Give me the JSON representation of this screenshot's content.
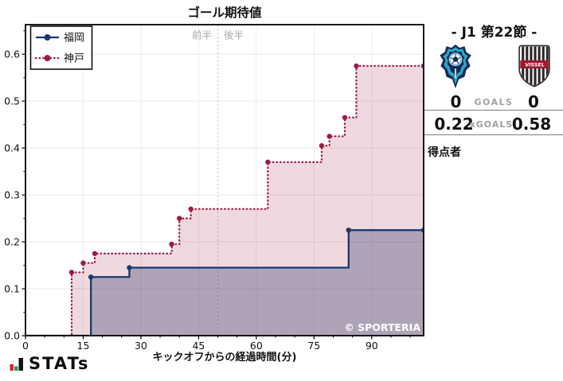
{
  "watermark": "© SPORTERIA",
  "branding": {
    "logo_text": "STATs"
  },
  "match_panel": {
    "title": "- J1 第22節 -",
    "goals_label": "GOALS",
    "xgoals_label": "xGOALS",
    "home": {
      "team": "福岡",
      "goals": "0",
      "xgoals": "0.22",
      "crest": "avispa-fukuoka-crest"
    },
    "away": {
      "team": "神戸",
      "goals": "0",
      "xgoals": "0.58",
      "crest": "vissel-kobe-crest"
    },
    "scorers_label": "得点者"
  },
  "chart_data": {
    "type": "line",
    "subtype": "step-after-cumulative-xg",
    "title": "ゴール期待値",
    "xlabel": "キックオフからの経過時間(分)",
    "period_labels": {
      "first_half": "前半",
      "second_half": "後半"
    },
    "halftime_x": 50,
    "x_ticks": [
      0,
      15,
      30,
      45,
      60,
      75,
      90
    ],
    "y_ticks": [
      0.0,
      0.1,
      0.2,
      0.3,
      0.4,
      0.5,
      0.6
    ],
    "xlim": [
      0,
      103.5
    ],
    "ylim": [
      0,
      0.663
    ],
    "grid": true,
    "legend_position": "upper-left",
    "series": [
      {
        "id": "fukuoka",
        "name": "福岡",
        "color": "#173a6d",
        "fill_color": "rgba(23,58,109,0.33)",
        "line_style": "solid",
        "final_xg": 0.22,
        "points": [
          [
            0,
            0
          ],
          [
            17,
            0.125
          ],
          [
            27,
            0.145
          ],
          [
            84,
            0.225
          ],
          [
            103.5,
            0.225
          ]
        ]
      },
      {
        "id": "kobe",
        "name": "神戸",
        "color": "#9e1b42",
        "fill_color": "rgba(158,27,66,0.17)",
        "line_style": "dotted",
        "final_xg": 0.58,
        "points": [
          [
            0,
            0
          ],
          [
            12,
            0.135
          ],
          [
            15,
            0.155
          ],
          [
            18,
            0.175
          ],
          [
            38,
            0.195
          ],
          [
            40,
            0.25
          ],
          [
            43,
            0.27
          ],
          [
            63,
            0.37
          ],
          [
            77,
            0.405
          ],
          [
            79,
            0.425
          ],
          [
            83,
            0.465
          ],
          [
            86,
            0.575
          ],
          [
            103.5,
            0.575
          ]
        ]
      }
    ]
  }
}
